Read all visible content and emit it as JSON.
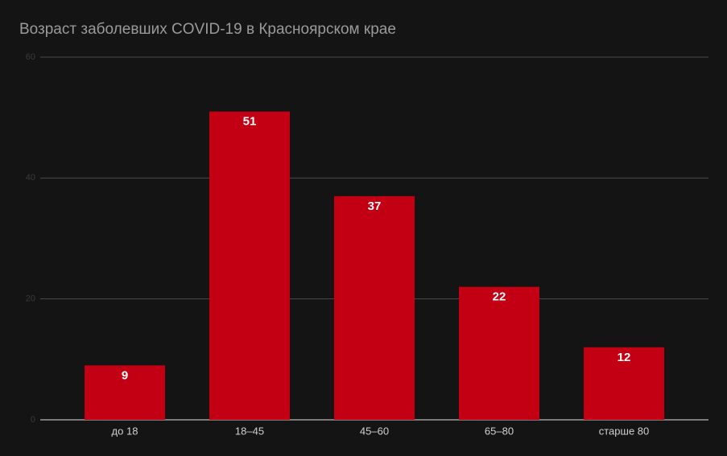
{
  "chart_data": {
    "type": "bar",
    "title": "Возраст заболевших COVID-19 в Красноярском крае",
    "categories": [
      "до 18",
      "18–45",
      "45–60",
      "65–80",
      "старше 80"
    ],
    "values": [
      9,
      51,
      37,
      22,
      12
    ],
    "color": "#c30013",
    "ylim": [
      0,
      60
    ],
    "yticks": [
      0,
      20,
      40,
      60
    ],
    "grid": true
  }
}
